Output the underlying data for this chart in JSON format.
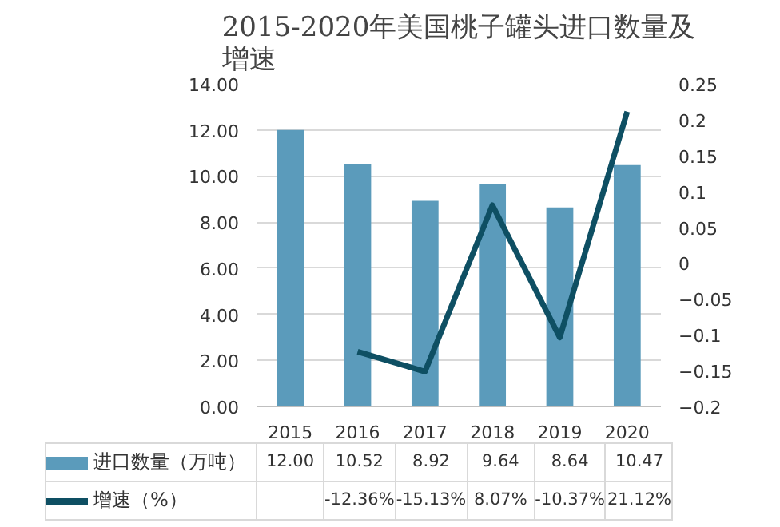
{
  "chart_data": {
    "type": "bar",
    "title": "2015-2020年美国桃子罐头进口数量及增速",
    "categories": [
      "2015",
      "2016",
      "2017",
      "2018",
      "2019",
      "2020"
    ],
    "series": [
      {
        "name": "进口数量（万吨）",
        "color": "#5b9bbb",
        "values": [
          12.0,
          10.52,
          8.92,
          9.64,
          8.64,
          10.47
        ],
        "value_labels": [
          "12.00",
          "10.52",
          "8.92",
          "9.64",
          "8.64",
          "10.47"
        ]
      },
      {
        "name": "增速（%）",
        "type": "line",
        "axis": "y2",
        "color": "#0e4f63",
        "values": [
          null,
          -0.1236,
          -0.1513,
          0.0807,
          -0.1037,
          0.2112
        ],
        "value_labels": [
          null,
          "-12.36%",
          "-15.13%",
          "8.07%",
          "-10.37%",
          "21.12%"
        ]
      }
    ],
    "ylim": [
      0,
      14
    ],
    "yticks": [
      {
        "value": 0,
        "label": "0.00"
      },
      {
        "value": 2,
        "label": "2.00"
      },
      {
        "value": 4,
        "label": "4.00"
      },
      {
        "value": 6,
        "label": "6.00"
      },
      {
        "value": 8,
        "label": "8.00"
      },
      {
        "value": 10,
        "label": "10.00"
      },
      {
        "value": 12,
        "label": "12.00"
      },
      {
        "value": 14,
        "label": "14.00"
      }
    ],
    "y2lim": [
      -0.2,
      0.25
    ],
    "y2ticks": [
      -0.2,
      -0.15,
      -0.1,
      -0.05,
      0,
      0.05,
      0.1,
      0.15,
      0.2,
      0.25
    ],
    "grid": "y",
    "legend": "bottom",
    "line_style": "solid"
  }
}
